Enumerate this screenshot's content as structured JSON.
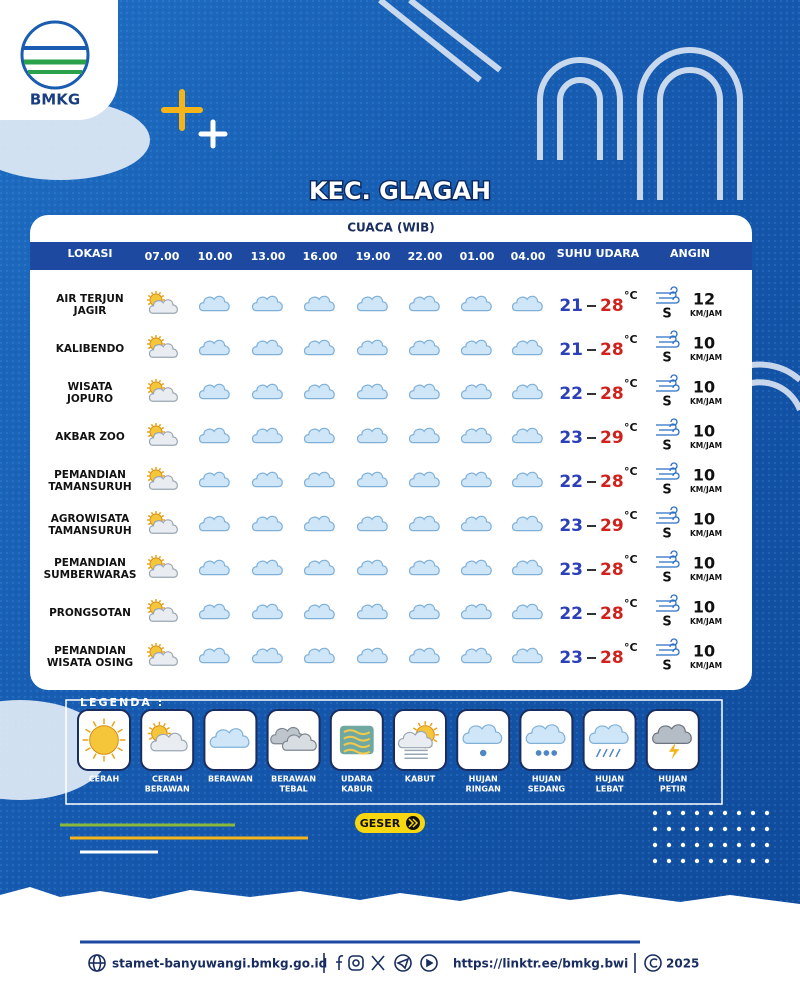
{
  "header": {
    "logo": "BMKG",
    "title": "KEC. GLAGAH"
  },
  "table": {
    "caption": "CUACA (WIB)",
    "columns": [
      "LOKASI",
      "07.00",
      "10.00",
      "13.00",
      "16.00",
      "19.00",
      "22.00",
      "01.00",
      "04.00",
      "SUHU UDARA",
      "ANGIN"
    ],
    "temp_unit": "°C",
    "wind_unit": "KM/JAM",
    "rows": [
      {
        "location": [
          "AIR TERJUN",
          "JAGIR"
        ],
        "weather": [
          1,
          2,
          2,
          2,
          2,
          2,
          2,
          2
        ],
        "temp_min": 21,
        "temp_max": 28,
        "wind_dir": "S",
        "wind_speed": 12
      },
      {
        "location": [
          "KALIBENDO"
        ],
        "weather": [
          1,
          2,
          2,
          2,
          2,
          2,
          2,
          2
        ],
        "temp_min": 21,
        "temp_max": 28,
        "wind_dir": "S",
        "wind_speed": 10
      },
      {
        "location": [
          "WISATA",
          "JOPURO"
        ],
        "weather": [
          1,
          2,
          2,
          2,
          2,
          2,
          2,
          2
        ],
        "temp_min": 22,
        "temp_max": 28,
        "wind_dir": "S",
        "wind_speed": 10
      },
      {
        "location": [
          "AKBAR ZOO"
        ],
        "weather": [
          1,
          2,
          2,
          2,
          2,
          2,
          2,
          2
        ],
        "temp_min": 23,
        "temp_max": 29,
        "wind_dir": "S",
        "wind_speed": 10
      },
      {
        "location": [
          "PEMANDIAN",
          "TAMANSURUH"
        ],
        "weather": [
          1,
          2,
          2,
          2,
          2,
          2,
          2,
          2
        ],
        "temp_min": 22,
        "temp_max": 28,
        "wind_dir": "S",
        "wind_speed": 10
      },
      {
        "location": [
          "AGROWISATA",
          "TAMANSURUH"
        ],
        "weather": [
          1,
          2,
          2,
          2,
          2,
          2,
          2,
          2
        ],
        "temp_min": 23,
        "temp_max": 29,
        "wind_dir": "S",
        "wind_speed": 10
      },
      {
        "location": [
          "PEMANDIAN",
          "SUMBERWARAS"
        ],
        "weather": [
          1,
          2,
          2,
          2,
          2,
          2,
          2,
          2
        ],
        "temp_min": 23,
        "temp_max": 28,
        "wind_dir": "S",
        "wind_speed": 10
      },
      {
        "location": [
          "PRONGSOTAN"
        ],
        "weather": [
          1,
          2,
          2,
          2,
          2,
          2,
          2,
          2
        ],
        "temp_min": 22,
        "temp_max": 28,
        "wind_dir": "S",
        "wind_speed": 10
      },
      {
        "location": [
          "PEMANDIAN",
          "WISATA OSING"
        ],
        "weather": [
          1,
          2,
          2,
          2,
          2,
          2,
          2,
          2
        ],
        "temp_min": 23,
        "temp_max": 28,
        "wind_dir": "S",
        "wind_speed": 10
      }
    ]
  },
  "legend": {
    "title": "LEGENDA :",
    "items": [
      [
        "CERAH"
      ],
      [
        "CERAH",
        "BERAWAN"
      ],
      [
        "BERAWAN"
      ],
      [
        "BERAWAN",
        "TEBAL"
      ],
      [
        "UDARA",
        "KABUR"
      ],
      [
        "KABUT"
      ],
      [
        "HUJAN",
        "RINGAN"
      ],
      [
        "HUJAN",
        "SEDANG"
      ],
      [
        "HUJAN",
        "LEBAT"
      ],
      [
        "HUJAN",
        "PETIR"
      ]
    ]
  },
  "button": "GESER",
  "footer": {
    "website": "stamet-banyuwangi.bmkg.go.id",
    "link": "https://linktr.ee/bmkg.bwi",
    "year": "2025"
  }
}
